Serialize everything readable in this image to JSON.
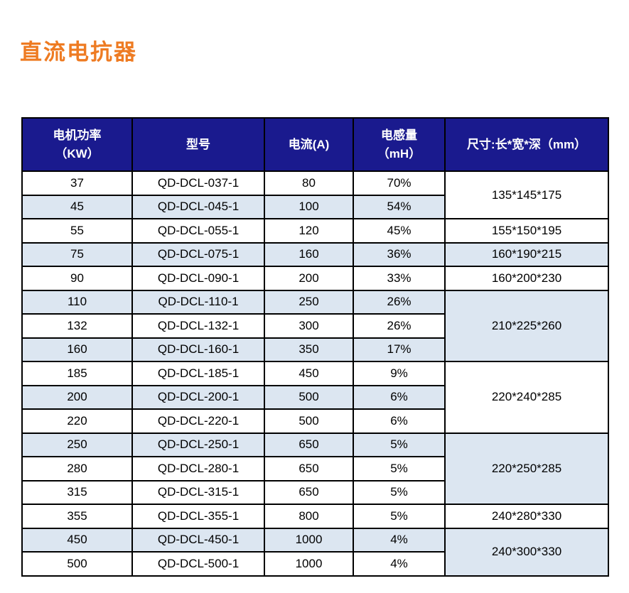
{
  "page": {
    "title": "直流电抗器",
    "title_color": "#ee7b22",
    "background": "#ffffff"
  },
  "table": {
    "header": {
      "bg": "#1a1a8e",
      "text_color": "#ffffff",
      "columns": [
        {
          "label": "电机功率\n（KW）"
        },
        {
          "label": "型号"
        },
        {
          "label": "电流(A)"
        },
        {
          "label": "电感量\n（mH）"
        },
        {
          "label": "尺寸:长*宽*深（mm）"
        }
      ]
    },
    "row_alt_bg": "#dce6f1",
    "rows": [
      {
        "power_kw": "37",
        "model": "QD-DCL-037-1",
        "current_a": "80",
        "inductance": "70%",
        "shaded": false,
        "dim": {
          "text": "135*145*175",
          "span": 2
        }
      },
      {
        "power_kw": "45",
        "model": "QD-DCL-045-1",
        "current_a": "100",
        "inductance": "54%",
        "shaded": true
      },
      {
        "power_kw": "55",
        "model": "QD-DCL-055-1",
        "current_a": "120",
        "inductance": "45%",
        "shaded": false,
        "dim": {
          "text": "155*150*195",
          "span": 1
        }
      },
      {
        "power_kw": "75",
        "model": "QD-DCL-075-1",
        "current_a": "160",
        "inductance": "36%",
        "shaded": true,
        "dim": {
          "text": "160*190*215",
          "span": 1
        }
      },
      {
        "power_kw": "90",
        "model": "QD-DCL-090-1",
        "current_a": "200",
        "inductance": "33%",
        "shaded": false,
        "dim": {
          "text": "160*200*230",
          "span": 1
        }
      },
      {
        "power_kw": "110",
        "model": "QD-DCL-110-1",
        "current_a": "250",
        "inductance": "26%",
        "shaded": true,
        "dim": {
          "text": "210*225*260",
          "span": 3
        }
      },
      {
        "power_kw": "132",
        "model": "QD-DCL-132-1",
        "current_a": "300",
        "inductance": "26%",
        "shaded": false
      },
      {
        "power_kw": "160",
        "model": "QD-DCL-160-1",
        "current_a": "350",
        "inductance": "17%",
        "shaded": true
      },
      {
        "power_kw": "185",
        "model": "QD-DCL-185-1",
        "current_a": "450",
        "inductance": "9%",
        "shaded": false,
        "dim": {
          "text": "220*240*285",
          "span": 3
        }
      },
      {
        "power_kw": "200",
        "model": "QD-DCL-200-1",
        "current_a": "500",
        "inductance": "6%",
        "shaded": true
      },
      {
        "power_kw": "220",
        "model": "QD-DCL-220-1",
        "current_a": "500",
        "inductance": "6%",
        "shaded": false
      },
      {
        "power_kw": "250",
        "model": "QD-DCL-250-1",
        "current_a": "650",
        "inductance": "5%",
        "shaded": true,
        "dim": {
          "text": "220*250*285",
          "span": 3
        }
      },
      {
        "power_kw": "280",
        "model": "QD-DCL-280-1",
        "current_a": "650",
        "inductance": "5%",
        "shaded": false
      },
      {
        "power_kw": "315",
        "model": "QD-DCL-315-1",
        "current_a": "650",
        "inductance": "5%",
        "shaded": false
      },
      {
        "power_kw": "355",
        "model": "QD-DCL-355-1",
        "current_a": "800",
        "inductance": "5%",
        "shaded": false,
        "dim": {
          "text": "240*280*330",
          "span": 1
        }
      },
      {
        "power_kw": "450",
        "model": "QD-DCL-450-1",
        "current_a": "1000",
        "inductance": "4%",
        "shaded": true,
        "dim": {
          "text": "240*300*330",
          "span": 2
        }
      },
      {
        "power_kw": "500",
        "model": "QD-DCL-500-1",
        "current_a": "1000",
        "inductance": "4%",
        "shaded": false
      }
    ]
  }
}
